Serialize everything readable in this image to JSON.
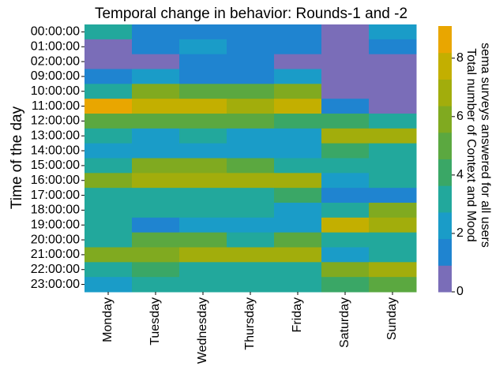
{
  "chart_data": {
    "type": "heatmap",
    "title": "Temporal change in behavior: Rounds-1 and -2",
    "ylabel": "Time of the day",
    "clabel": [
      "Total number of Context and Mood",
      "sema surveys answered for all users"
    ],
    "x": [
      "Monday",
      "Tuesday",
      "Wednesday",
      "Thursday",
      "Friday",
      "Saturday",
      "Sunday"
    ],
    "y": [
      "00:00:00",
      "01:00:00",
      "02:00:00",
      "09:00:00",
      "10:00:00",
      "11:00:00",
      "12:00:00",
      "13:00:00",
      "14:00:00",
      "15:00:00",
      "16:00:00",
      "17:00:00",
      "18:00:00",
      "19:00:00",
      "20:00:00",
      "21:00:00",
      "22:00:00",
      "23:00:00"
    ],
    "values": [
      [
        3,
        1,
        1,
        1,
        1,
        0,
        2
      ],
      [
        0,
        1,
        2,
        1,
        1,
        0,
        1
      ],
      [
        0,
        0,
        1,
        1,
        0,
        0,
        0
      ],
      [
        1,
        2,
        1,
        1,
        2,
        0,
        0
      ],
      [
        3,
        6,
        5,
        5,
        6,
        0,
        0
      ],
      [
        9,
        8,
        8,
        7,
        8,
        1,
        0
      ],
      [
        5,
        5,
        5,
        5,
        4,
        4,
        3
      ],
      [
        3,
        2,
        3,
        2,
        2,
        7,
        7
      ],
      [
        2,
        2,
        2,
        2,
        2,
        4,
        3
      ],
      [
        3,
        6,
        6,
        5,
        3,
        3,
        3
      ],
      [
        6,
        7,
        7,
        7,
        7,
        2,
        3
      ],
      [
        3,
        3,
        3,
        3,
        4,
        1,
        1
      ],
      [
        3,
        3,
        3,
        3,
        2,
        3,
        6
      ],
      [
        3,
        1,
        2,
        2,
        2,
        8,
        7
      ],
      [
        3,
        5,
        5,
        3,
        5,
        3,
        3
      ],
      [
        6,
        6,
        7,
        7,
        7,
        2,
        3
      ],
      [
        3,
        4,
        3,
        3,
        3,
        6,
        7
      ],
      [
        2,
        3,
        3,
        3,
        3,
        4,
        5
      ]
    ],
    "colors": [
      "#7a6db8",
      "#1f84d0",
      "#1a9cc8",
      "#22a89c",
      "#3aa766",
      "#5ba840",
      "#80aa20",
      "#a2ad0c",
      "#c3af00",
      "#e9a600"
    ],
    "clim": [
      0,
      9.1
    ],
    "cticks": [
      0,
      2,
      4,
      6,
      8
    ]
  }
}
